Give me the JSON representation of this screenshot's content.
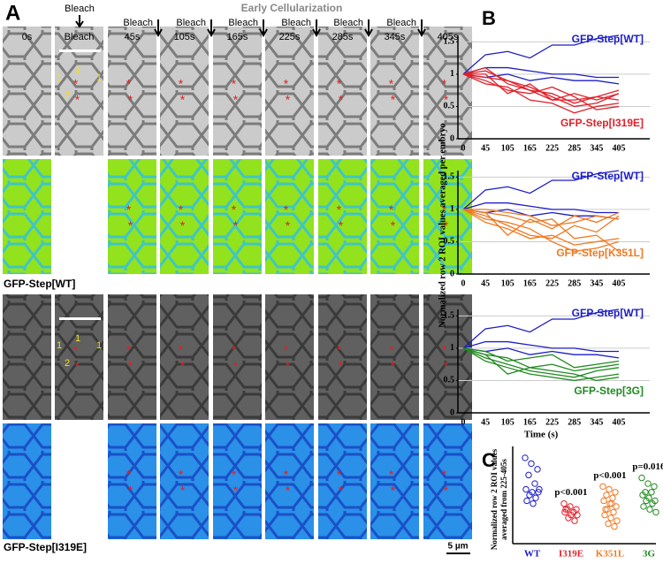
{
  "panel_a": {
    "label": "A",
    "title": "Early Cellularization",
    "time_labels": [
      "0s",
      "Bleach",
      "45s",
      "105s",
      "165s",
      "225s",
      "285s",
      "345s",
      "405s"
    ],
    "bleach_label": "Bleach",
    "rows": [
      "GFP-Step[WT]",
      "GFP-Step[I319E]"
    ],
    "roi_labels": [
      "1",
      "2"
    ],
    "marker": "*",
    "scale_bar": "5 µm"
  },
  "chart_data": [
    {
      "type": "line",
      "panel": "B",
      "ylabel": "Normalized row 2 ROI values averaged per embryo",
      "categories": [
        "0",
        "45",
        "105",
        "165",
        "225",
        "285",
        "345",
        "405"
      ],
      "ylim": [
        0,
        1.6
      ],
      "yticks": [
        0,
        0.5,
        1,
        1.5
      ],
      "grid": true,
      "groups": [
        {
          "name": "GFP-Step[WT]",
          "color": "#1c1cc8",
          "lines": [
            [
              1,
              1.3,
              1.35,
              1.25,
              1.45,
              1.45,
              1.55,
              1.6
            ],
            [
              1,
              1.1,
              1.1,
              1.05,
              1.0,
              1.0,
              0.95,
              0.95
            ],
            [
              1,
              0.95,
              1.0,
              0.9,
              0.95,
              0.9,
              0.9,
              0.85
            ]
          ]
        },
        {
          "name": "GFP-Step[I319E]",
          "color": "#e0202a",
          "lines": [
            [
              1,
              0.95,
              0.9,
              0.75,
              0.7,
              0.55,
              0.65,
              0.6
            ],
            [
              1,
              1.05,
              0.9,
              0.8,
              0.65,
              0.5,
              0.55,
              0.7
            ],
            [
              1,
              1.0,
              0.7,
              0.85,
              0.6,
              0.6,
              0.65,
              0.75
            ],
            [
              1,
              0.9,
              0.75,
              0.7,
              0.8,
              0.65,
              0.45,
              0.5
            ],
            [
              1,
              0.85,
              0.8,
              0.6,
              0.55,
              0.4,
              0.5,
              0.55
            ],
            [
              1,
              1.1,
              0.85,
              0.75,
              0.6,
              0.7,
              0.6,
              0.7
            ]
          ]
        }
      ]
    },
    {
      "type": "line",
      "categories": [
        "0",
        "45",
        "105",
        "165",
        "225",
        "285",
        "345",
        "405"
      ],
      "ylim": [
        0,
        1.6
      ],
      "yticks": [
        0,
        0.5,
        1,
        1.5
      ],
      "grid": true,
      "groups": [
        {
          "name": "GFP-Step[WT]",
          "color": "#1c1cc8",
          "lines": [
            [
              1,
              1.3,
              1.35,
              1.25,
              1.45,
              1.45,
              1.55,
              1.6
            ],
            [
              1,
              1.1,
              1.1,
              1.05,
              1.0,
              1.0,
              0.95,
              0.95
            ],
            [
              1,
              0.95,
              1.0,
              0.9,
              0.95,
              0.9,
              0.9,
              0.85
            ]
          ]
        },
        {
          "name": "GFP-Step[K351L]",
          "color": "#f07820",
          "lines": [
            [
              1,
              0.95,
              0.6,
              0.85,
              0.7,
              0.9,
              0.8,
              0.95
            ],
            [
              1,
              0.9,
              0.75,
              0.6,
              0.55,
              0.75,
              0.65,
              0.9
            ],
            [
              1,
              0.85,
              0.8,
              0.7,
              0.5,
              0.35,
              0.4,
              0.5
            ],
            [
              1,
              0.95,
              0.9,
              0.8,
              0.85,
              0.55,
              0.6,
              0.35
            ],
            [
              1,
              0.8,
              0.7,
              0.55,
              0.6,
              0.45,
              0.5,
              0.55
            ],
            [
              1,
              1.0,
              0.95,
              0.9,
              0.75,
              0.8,
              0.9,
              0.85
            ]
          ]
        }
      ]
    },
    {
      "type": "line",
      "xlabel": "Time (s)",
      "categories": [
        "0",
        "45",
        "105",
        "165",
        "225",
        "285",
        "345",
        "405"
      ],
      "ylim": [
        0,
        1.6
      ],
      "yticks": [
        0,
        0.5,
        1,
        1.5
      ],
      "grid": true,
      "groups": [
        {
          "name": "GFP-Step[WT]",
          "color": "#1c1cc8",
          "lines": [
            [
              1,
              1.3,
              1.35,
              1.25,
              1.45,
              1.45,
              1.55,
              1.6
            ],
            [
              1,
              1.1,
              1.1,
              1.05,
              1.0,
              1.0,
              0.95,
              0.95
            ],
            [
              1,
              0.95,
              1.0,
              0.9,
              0.95,
              0.9,
              0.9,
              0.85
            ]
          ]
        },
        {
          "name": "GFP-Step[3G]",
          "color": "#208a20",
          "lines": [
            [
              1,
              0.95,
              0.8,
              0.85,
              0.9,
              0.7,
              0.75,
              0.8
            ],
            [
              1,
              0.9,
              0.85,
              0.7,
              0.75,
              0.65,
              0.7,
              0.75
            ],
            [
              1,
              0.85,
              0.75,
              0.65,
              0.6,
              0.55,
              0.65,
              0.7
            ],
            [
              1,
              0.8,
              0.7,
              0.6,
              0.55,
              0.5,
              0.55,
              0.6
            ],
            [
              1,
              0.9,
              0.6,
              0.7,
              0.65,
              0.6,
              0.5,
              0.55
            ]
          ]
        }
      ]
    },
    {
      "type": "strip",
      "panel": "C",
      "ylabel": [
        "Normalized row 2 ROI values",
        "averaged from 225-405s"
      ],
      "categories": [
        "WT",
        "I319E",
        "K351L",
        "3G"
      ],
      "ylim": [
        0,
        1.7
      ],
      "groups": [
        {
          "color": "#1c1cc8",
          "values": [
            1.5,
            1.4,
            1.3,
            1.2,
            1.05,
            0.95,
            0.9,
            0.9,
            0.85,
            0.8,
            0.75,
            0.7,
            0.95
          ]
        },
        {
          "color": "#e0202a",
          "values": [
            0.7,
            0.65,
            0.6,
            0.6,
            0.55,
            0.55,
            0.5,
            0.5,
            0.45,
            0.4,
            0.6
          ]
        },
        {
          "color": "#f07820",
          "values": [
            1.0,
            0.95,
            0.9,
            0.85,
            0.8,
            0.75,
            0.7,
            0.65,
            0.6,
            0.55,
            0.5,
            0.45,
            0.4,
            0.35,
            0.3,
            0.6,
            0.7
          ]
        },
        {
          "color": "#208a20",
          "values": [
            1.15,
            1.05,
            1.0,
            0.9,
            0.9,
            0.85,
            0.8,
            0.75,
            0.75,
            0.7,
            0.65,
            0.6,
            0.55
          ]
        }
      ],
      "annotations": [
        {
          "category": "I319E",
          "text": "p<0.001"
        },
        {
          "category": "K351L",
          "text": "p<0.001"
        },
        {
          "category": "3G",
          "text": "p=0.016"
        }
      ]
    }
  ]
}
